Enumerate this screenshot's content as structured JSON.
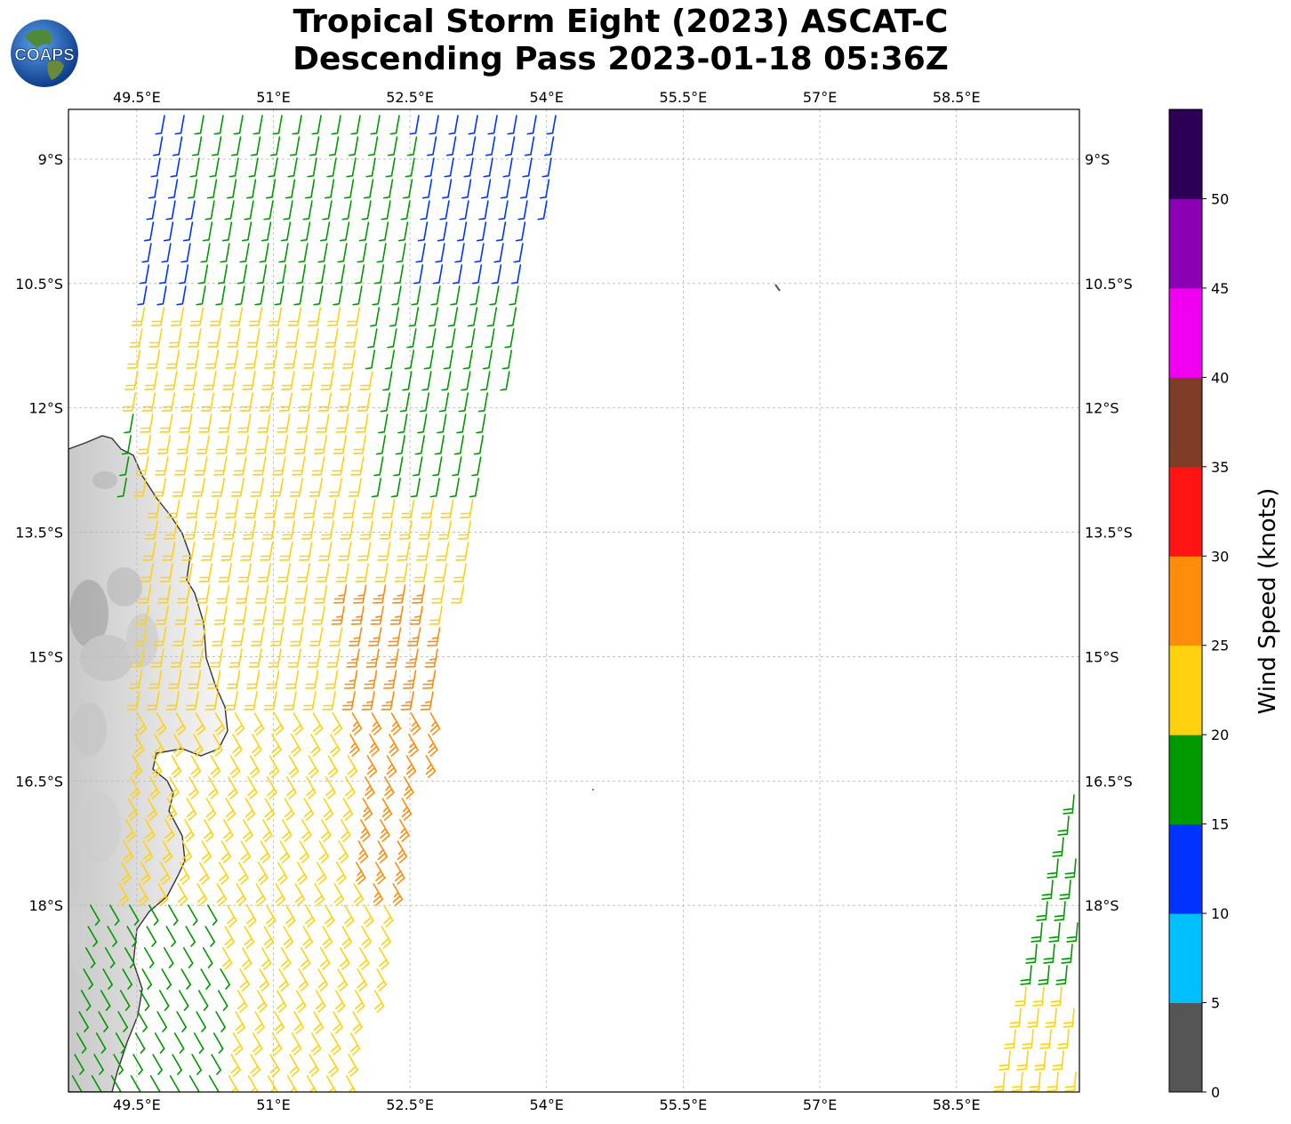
{
  "title": {
    "line1": "Tropical Storm Eight (2023) ASCAT-C",
    "line2": "Descending Pass 2023-01-18 05:36Z"
  },
  "logo": {
    "text": "COAPS",
    "icon": "globe-logo-icon"
  },
  "map": {
    "lon_range": [
      48.75,
      59.85
    ],
    "lat_range": [
      -20.25,
      -8.4
    ],
    "lon_ticks": [
      "49.5°E",
      "51°E",
      "52.5°E",
      "54°E",
      "55.5°E",
      "57°E",
      "58.5°E"
    ],
    "lat_ticks": [
      "9°S",
      "10.5°S",
      "12°S",
      "13.5°S",
      "15°S",
      "16.5°S",
      "18°S"
    ],
    "gridlines": true,
    "land": "Madagascar (grayscale terrain)",
    "coast_color": "#333333"
  },
  "colorbar": {
    "label": "Wind Speed (knots)",
    "ticks": [
      "0",
      "5",
      "10",
      "15",
      "20",
      "25",
      "30",
      "35",
      "40",
      "45",
      "50"
    ],
    "colors": [
      "#555555",
      "#00bfff",
      "#0033ff",
      "#009900",
      "#ffd20f",
      "#ff8c0a",
      "#ff1414",
      "#7f3d28",
      "#f000f0",
      "#8c00b4",
      "#2c0055"
    ]
  }
}
